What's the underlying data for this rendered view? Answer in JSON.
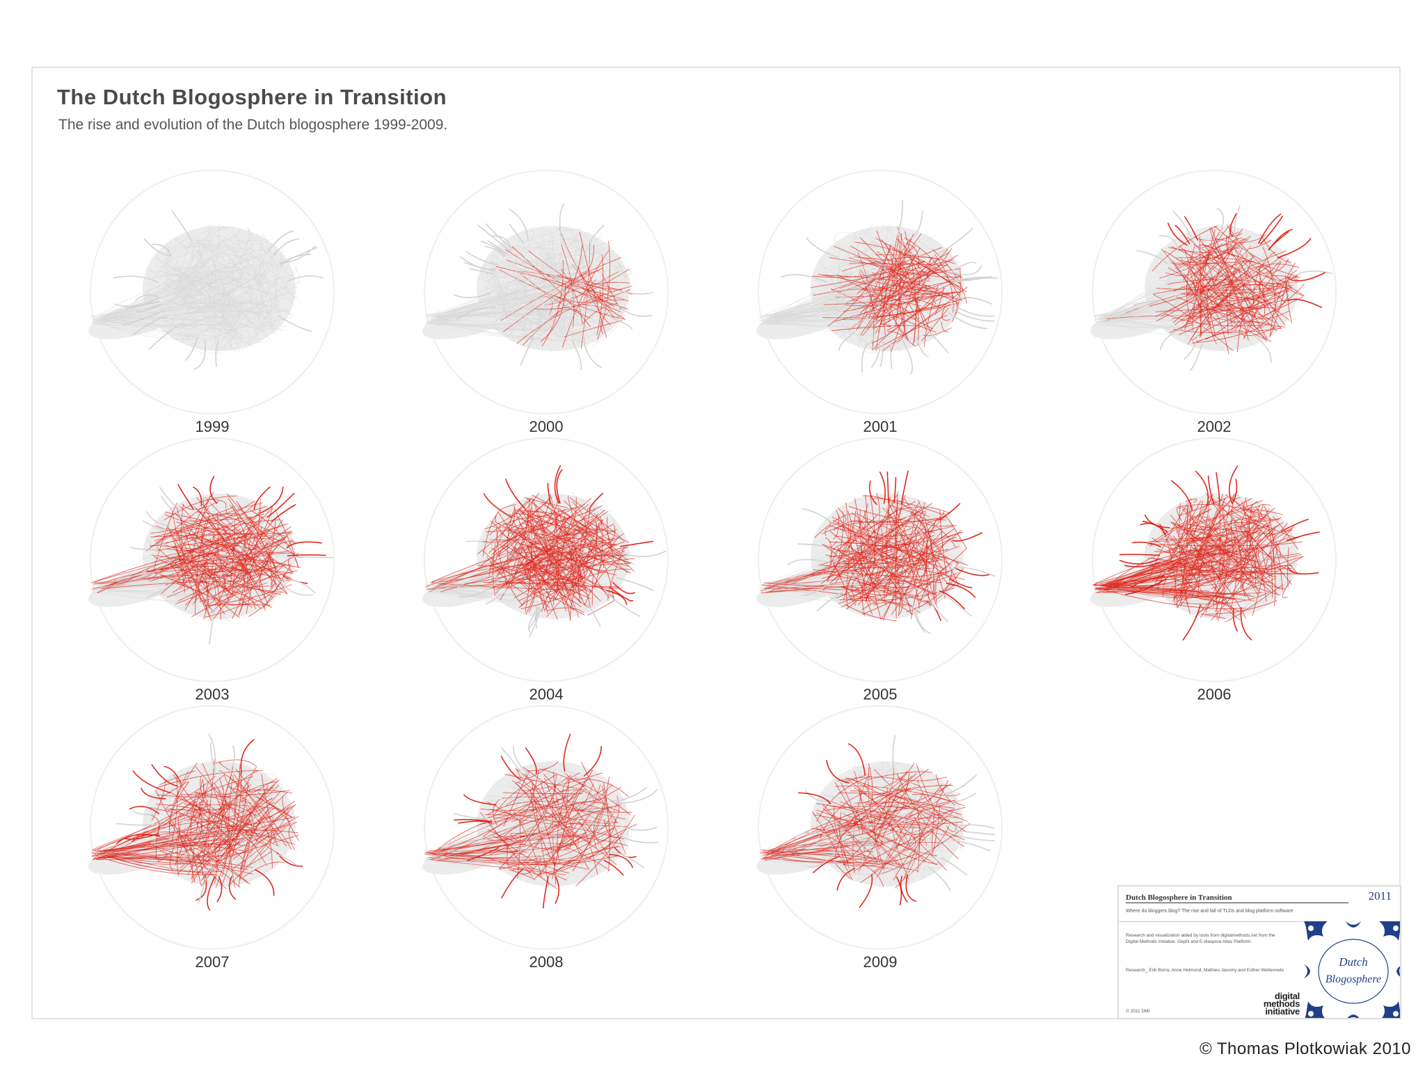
{
  "poster": {
    "title": "The Dutch Blogosphere in Transition",
    "subtitle": "The rise and evolution of the Dutch blogosphere 1999-2009."
  },
  "panels": [
    {
      "year": "1999"
    },
    {
      "year": "2000"
    },
    {
      "year": "2001"
    },
    {
      "year": "2002"
    },
    {
      "year": "2003"
    },
    {
      "year": "2004"
    },
    {
      "year": "2005"
    },
    {
      "year": "2006"
    },
    {
      "year": "2007"
    },
    {
      "year": "2008"
    },
    {
      "year": "2009"
    }
  ],
  "colors": {
    "highlight": "#e0281e",
    "base_network": "#d9d9d9",
    "title_text": "#4a4a4a"
  },
  "colophon": {
    "title": "Dutch Blogosphere in Transition",
    "year": "2011",
    "tagline": "Where do bloggers blog? The rise and fall of TLDs and blog platform software",
    "description": "Research and visualization aided by tools from digitalmethods.net from the Digital Methods Initiative. Gephi and E-diaspora Atlas Platform.",
    "credits": "Research_ Erik Borra, Anne Helmond, Mathieu Jacomy and Esther Weltevrede",
    "copyright": "© 2011 DMI",
    "logo_text": "digital methods initiative",
    "tile_logo_line1": "Dutch",
    "tile_logo_line2": "Blogosphere"
  },
  "footer": {
    "copyright": "© Thomas Plotkowiak 2010"
  }
}
